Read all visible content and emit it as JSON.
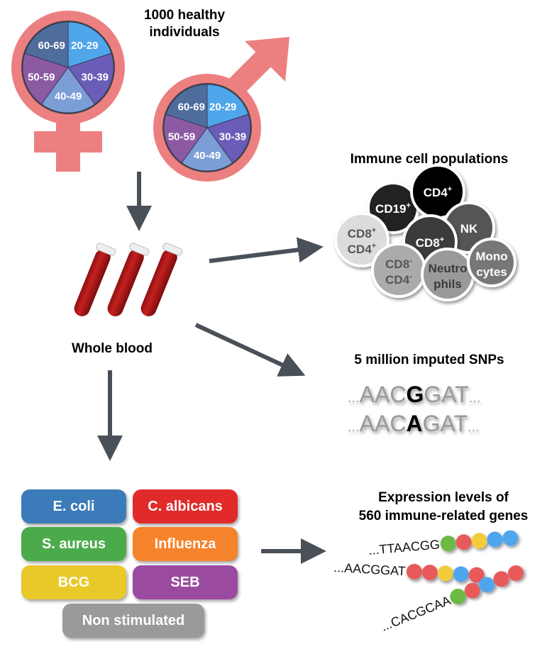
{
  "cohort": {
    "title_line1": "1000 healthy",
    "title_line2": "individuals",
    "age_groups": [
      "20-29",
      "30-39",
      "40-49",
      "50-59",
      "60-69"
    ],
    "age_colors": [
      "#4fa6ea",
      "#6a5db8",
      "#7c9ed6",
      "#8c5aa2",
      "#4e6c9c"
    ],
    "symbol_color": "#ec8080"
  },
  "sample": {
    "label": "Whole blood"
  },
  "immune": {
    "title": "Immune cell populations",
    "cells": [
      {
        "line1": "CD19",
        "sup1": "+",
        "color": "#222222",
        "text": "#ffffff"
      },
      {
        "line1": "CD4",
        "sup1": "+",
        "color": "#000000",
        "text": "#ffffff"
      },
      {
        "line1": "NK",
        "sup1": "",
        "color": "#555555",
        "text": "#ffffff"
      },
      {
        "line1": "CD8",
        "sup1": "+",
        "line2": "CD4",
        "sup2": "+",
        "color": "#dcdcdc",
        "text": "#555555"
      },
      {
        "line1": "CD8",
        "sup1": "+",
        "color": "#3a3a3a",
        "text": "#ffffff"
      },
      {
        "line1": "CD8",
        "sup1": "-",
        "line2": "CD4",
        "sup2": "-",
        "color": "#ababab",
        "text": "#555555"
      },
      {
        "line1": "Neutro",
        "sup1": "",
        "line2": "phils",
        "sup2": "",
        "color": "#9a9a9a",
        "text": "#3a3a3a"
      },
      {
        "line1": "Mono",
        "sup1": "",
        "line2": "cytes",
        "sup2": "",
        "color": "#777777",
        "text": "#ffffff"
      }
    ]
  },
  "snps": {
    "title": "5 million imputed SNPs",
    "seq1": {
      "pre": "AAC",
      "allele": "G",
      "post": "GAT"
    },
    "seq2": {
      "pre": "AAC",
      "allele": "A",
      "post": "GAT"
    },
    "dots": "..."
  },
  "stimuli": [
    {
      "label": "E. coli",
      "color": "#3b7bb9"
    },
    {
      "label": "C. albicans",
      "color": "#e12b2b"
    },
    {
      "label": "S. aureus",
      "color": "#4bab4b"
    },
    {
      "label": "Influenza",
      "color": "#f5832b"
    },
    {
      "label": "BCG",
      "color": "#e9c92a"
    },
    {
      "label": "SEB",
      "color": "#9b4b9f"
    },
    {
      "label": "Non stimulated",
      "color": "#9a9a9a"
    }
  ],
  "expression": {
    "title_line1": "Expression levels of",
    "title_line2": "560 immune-related genes",
    "reads": [
      {
        "seq": "...TTAACGG",
        "beads": [
          "#6cba45",
          "#e85a5a",
          "#f2cc3a",
          "#4fa6ee",
          "#4fa6ee"
        ]
      },
      {
        "seq": "...AACGGAT",
        "beads": [
          "#e85a5a",
          "#e85a5a",
          "#f2cc3a",
          "#4fa6ee",
          "#e85a5a"
        ]
      },
      {
        "seq": "...CACGCAA",
        "beads": [
          "#6cba45",
          "#e85a5a",
          "#4fa6ee",
          "#e85a5a",
          "#e85a5a"
        ]
      }
    ]
  },
  "arrow_color": "#4a5058"
}
